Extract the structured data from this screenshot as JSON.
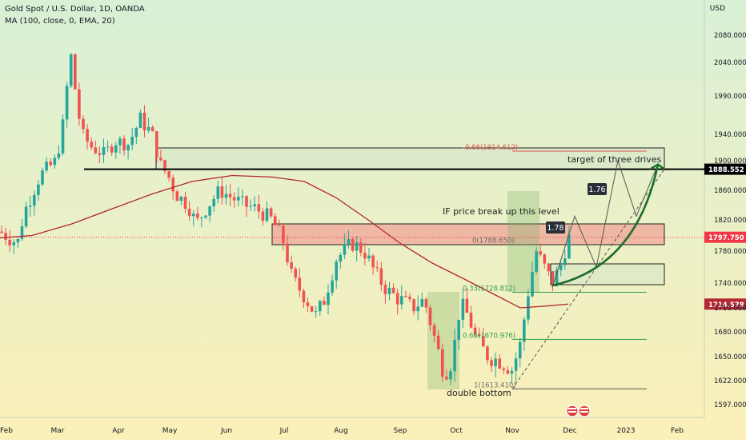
{
  "header": {
    "symbol": "Gold Spot / U.S. Dollar, 1D, OANDA",
    "indicator": "MA (100, close, 0, EMA, 20)",
    "currency": "USD"
  },
  "chart_data": {
    "type": "candlestick",
    "title": "Gold Spot / U.S. Dollar, 1D, OANDA",
    "ylim": [
      1585,
      2120
    ],
    "y_ticks": [
      1597,
      1622,
      1650,
      1680,
      1710,
      1740,
      1780,
      1820,
      1860,
      1900,
      1940,
      1990,
      2040,
      2080
    ],
    "y_tick_labels": [
      "1597.000",
      "1622.000",
      "1650.000",
      "1680.000",
      "1710.000",
      "1740.000",
      "1780.000",
      "1820.000",
      "1860.000",
      "1900.000",
      "1940.000",
      "1990.000",
      "2040.000",
      "2080.000"
    ],
    "x_labels": [
      "Feb",
      "Mar",
      "Apr",
      "May",
      "Jun",
      "Jul",
      "Aug",
      "Sep",
      "Oct",
      "Nov",
      "Dec",
      "2023",
      "Feb"
    ],
    "price_tags": [
      {
        "value": 1888.552,
        "label": "1888.552",
        "color": "#000000"
      },
      {
        "value": 1797.75,
        "label": "1797.750",
        "color": "#f23645"
      },
      {
        "value": 1714.578,
        "label": "1714.578",
        "color": "#b22833"
      }
    ],
    "fib_labels": [
      {
        "text": "-0.66(1914.612)",
        "value": 1914.612,
        "color": "#e05252"
      },
      {
        "text": "0(1788.650)",
        "value": 1788.65,
        "color": "#6b6b6b"
      },
      {
        "text": "0.33(1728.812)",
        "value": 1728.812,
        "color": "#2e9e4f"
      },
      {
        "text": "0.66(1670.976)",
        "value": 1670.976,
        "color": "#2e9e4f"
      },
      {
        "text": "1(1613.410)",
        "value": 1613.41,
        "color": "#6b6b6b"
      }
    ],
    "annotations": {
      "target": "target of three drives",
      "breakout": "IF price break up this level",
      "bottom": "double bottom",
      "ratio1": "1.78",
      "ratio2": "1.76"
    },
    "moving_average": {
      "name": "MA (100, close, 0, EMA, 20)",
      "color": "#b22833"
    },
    "colors": {
      "up": "#26a69a",
      "down": "#ef5350",
      "bg_top": "#d9f0d6",
      "bg_bottom": "#fbf0b8"
    }
  }
}
